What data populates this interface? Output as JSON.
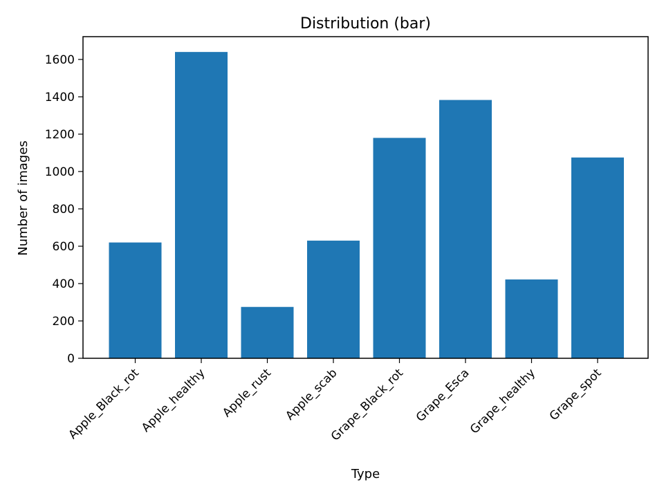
{
  "chart_data": {
    "type": "bar",
    "title": "Distribution (bar)",
    "xlabel": "Type",
    "ylabel": "Number of images",
    "categories": [
      "Apple_Black_rot",
      "Apple_healthy",
      "Apple_rust",
      "Apple_scab",
      "Grape_Black_rot",
      "Grape_Esca",
      "Grape_healthy",
      "Grape_spot"
    ],
    "values": [
      620,
      1640,
      275,
      630,
      1180,
      1383,
      422,
      1075
    ],
    "yticks": [
      0,
      200,
      400,
      600,
      800,
      1000,
      1200,
      1400,
      1600
    ],
    "ylim": [
      0,
      1722
    ],
    "grid": false,
    "legend": "none",
    "bar_color": "#1f77b4"
  }
}
